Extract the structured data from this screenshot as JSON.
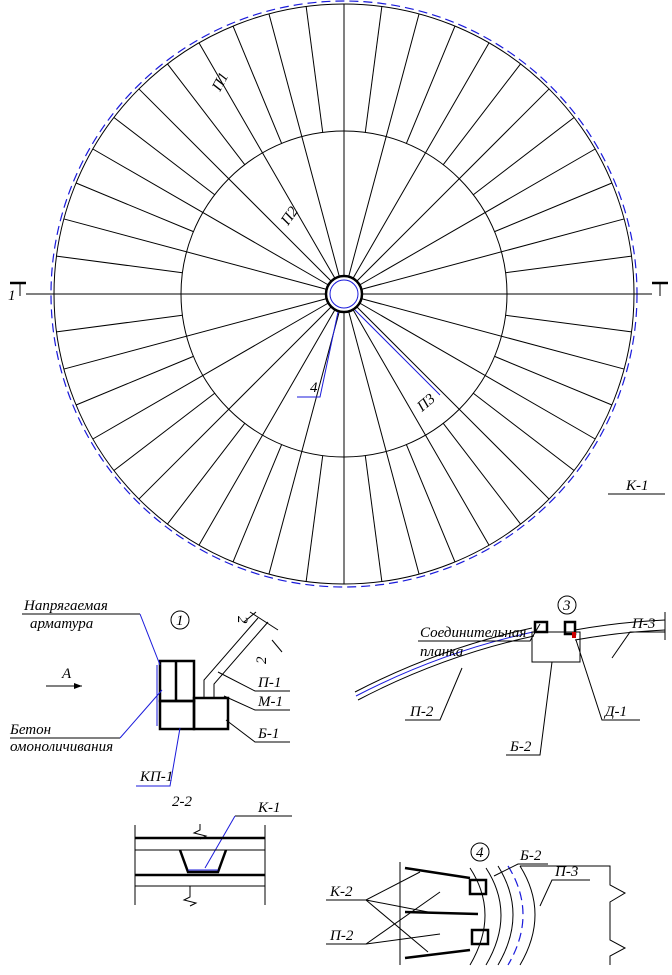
{
  "plan": {
    "panel_labels": [
      "П1",
      "П2",
      "П3"
    ],
    "callout": "4",
    "section_mark": "1",
    "key": "К-1"
  },
  "detail_1": {
    "number": "1",
    "section_mark": "2",
    "tendon_label": [
      "Напрягаемая",
      "арматура"
    ],
    "view": "А",
    "concrete_label": [
      "Бетон",
      "омоноличивания"
    ],
    "labels": [
      "КП-1",
      "П-1",
      "М-1",
      "Б-1"
    ]
  },
  "section_2_2": {
    "title": "2-2",
    "label": "К-1"
  },
  "detail_3": {
    "number": "3",
    "plate_label": [
      "Соединительная",
      "планка"
    ],
    "labels": [
      "П-3",
      "П-2",
      "Б-2",
      "Д-1"
    ]
  },
  "detail_4": {
    "number": "4",
    "labels": [
      "Б-2",
      "П-3",
      "К-2",
      "П-2"
    ]
  }
}
